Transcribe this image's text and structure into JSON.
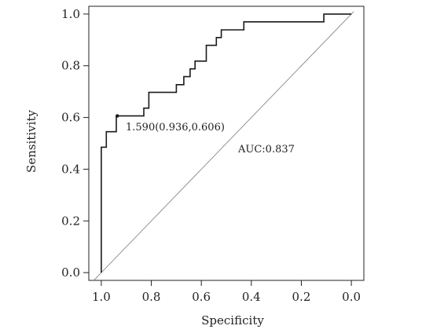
{
  "chart_data": {
    "type": "line",
    "xlabel": "Specificity",
    "ylabel": "Sensitivity",
    "xlim": [
      1.05,
      -0.05
    ],
    "ylim": [
      -0.03,
      1.03
    ],
    "x_reversed": true,
    "x_ticks": [
      1.0,
      0.8,
      0.6,
      0.4,
      0.2,
      0.0
    ],
    "x_tick_labels": [
      "1.0",
      "0.8",
      "0.6",
      "0.4",
      "0.2",
      "0.0"
    ],
    "y_ticks": [
      0.0,
      0.2,
      0.4,
      0.6,
      0.8,
      1.0
    ],
    "y_tick_labels": [
      "0.0",
      "0.2",
      "0.4",
      "0.6",
      "0.8",
      "1.0"
    ],
    "grid": false,
    "series": [
      {
        "style": "step",
        "color": "#1a1a1a",
        "points": [
          [
            1.0,
            0.0
          ],
          [
            1.0,
            0.485
          ],
          [
            0.98,
            0.485
          ],
          [
            0.98,
            0.545
          ],
          [
            0.94,
            0.545
          ],
          [
            0.94,
            0.606
          ],
          [
            0.83,
            0.606
          ],
          [
            0.83,
            0.636
          ],
          [
            0.81,
            0.636
          ],
          [
            0.81,
            0.697
          ],
          [
            0.7,
            0.697
          ],
          [
            0.7,
            0.727
          ],
          [
            0.67,
            0.727
          ],
          [
            0.67,
            0.758
          ],
          [
            0.645,
            0.758
          ],
          [
            0.645,
            0.788
          ],
          [
            0.625,
            0.788
          ],
          [
            0.625,
            0.818
          ],
          [
            0.58,
            0.818
          ],
          [
            0.58,
            0.879
          ],
          [
            0.54,
            0.879
          ],
          [
            0.54,
            0.909
          ],
          [
            0.52,
            0.909
          ],
          [
            0.52,
            0.939
          ],
          [
            0.43,
            0.939
          ],
          [
            0.43,
            0.97
          ],
          [
            0.11,
            0.97
          ],
          [
            0.11,
            1.0
          ],
          [
            0.0,
            1.0
          ]
        ]
      }
    ],
    "reference_line": {
      "from": [
        1.0,
        0.0
      ],
      "to": [
        0.0,
        1.0
      ],
      "color": "#888888"
    },
    "cutoff_point": {
      "x": 0.936,
      "y": 0.606
    },
    "annotations": {
      "cutoff_label": "1.590(0.936,0.606)",
      "auc_label": "AUC:0.837"
    }
  }
}
